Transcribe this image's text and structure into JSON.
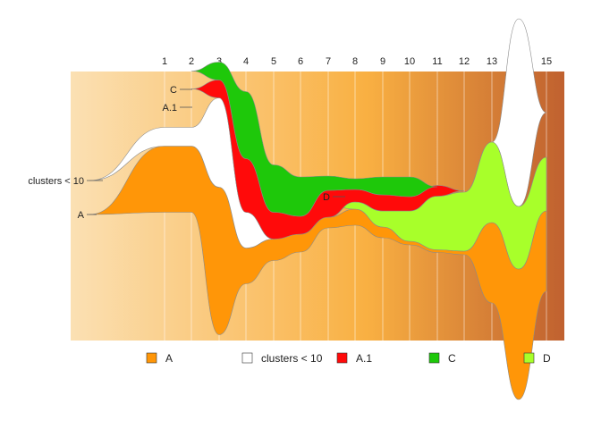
{
  "chart_data": {
    "type": "area",
    "subtype": "alluvial",
    "title": "",
    "xlabel": "",
    "ylabel": "",
    "x": [
      "1",
      "2",
      "3",
      "4",
      "5",
      "6",
      "7",
      "8",
      "9",
      "10",
      "11",
      "12",
      "13",
      "14",
      "15"
    ],
    "legend_position": "bottom",
    "background": "gradient",
    "background_colors": [
      "#fbe0b3",
      "#f9b042",
      "#c0612f"
    ],
    "series": [
      {
        "name": "A",
        "color": "#ff9608",
        "widths": [
          74,
          74,
          165,
          40,
          24,
          20,
          12,
          18,
          12,
          4,
          3,
          4,
          90,
          146,
          90
        ]
      },
      {
        "name": "clusters < 10",
        "color": "#ffffff",
        "widths": [
          21,
          21,
          100,
          40,
          0,
          0,
          0,
          0,
          0,
          0,
          0,
          0,
          0,
          210,
          0
        ]
      },
      {
        "name": "A.1",
        "color": "#ff0a0a",
        "widths": [
          0,
          0,
          20,
          60,
          30,
          20,
          30,
          14,
          18,
          16,
          12,
          0,
          0,
          0,
          0
        ]
      },
      {
        "name": "C",
        "color": "#1ec80a",
        "widths": [
          0,
          0,
          20,
          75,
          53,
          44,
          16,
          12,
          20,
          22,
          0,
          0,
          0,
          0,
          0
        ]
      },
      {
        "name": "D",
        "color": "#a8ff2a",
        "widths": [
          0,
          0,
          0,
          0,
          0,
          0,
          0,
          8,
          18,
          34,
          60,
          66,
          90,
          70,
          60
        ]
      }
    ],
    "labels": [
      "C",
      "A.1",
      "clusters < 10",
      "D",
      "A"
    ]
  },
  "legend": [
    {
      "label": "A",
      "color": "#ff9608"
    },
    {
      "label": "clusters < 10",
      "color": "#ffffff"
    },
    {
      "label": "A.1",
      "color": "#ff0a0a"
    },
    {
      "label": "C",
      "color": "#1ec80a"
    },
    {
      "label": "D",
      "color": "#a8ff2a"
    }
  ]
}
